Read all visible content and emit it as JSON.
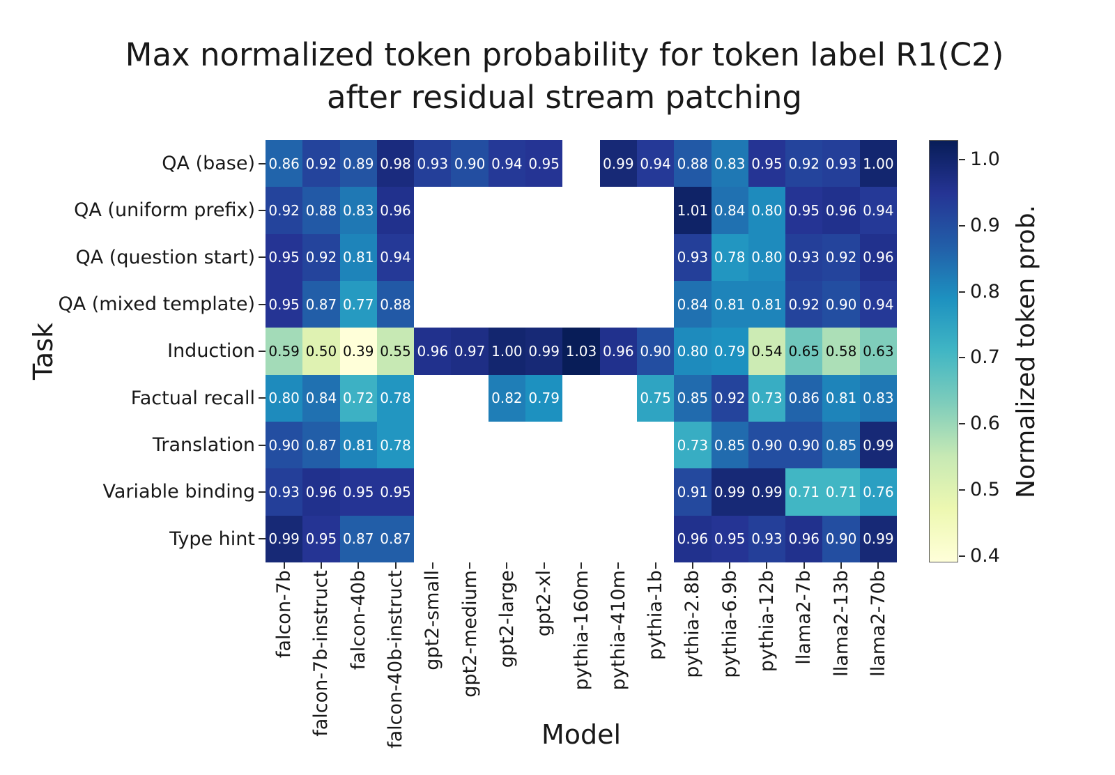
{
  "title": {
    "line1": "Max normalized token probability for token label R1(C2)",
    "line2": "after residual stream patching"
  },
  "chart_data": {
    "type": "heatmap",
    "title": "Max normalized token probability for token label R1(C2) after residual stream patching",
    "xlabel": "Model",
    "ylabel": "Task",
    "colorbar_label": "Normalized token prob.",
    "colormap": "YlGnBu",
    "vmin": 0.39,
    "vmax": 1.03,
    "colorbar_ticks": [
      0.4,
      0.5,
      0.6,
      0.7,
      0.8,
      0.9,
      1.0
    ],
    "colormap_stops": [
      [
        0.0,
        "#ffffd9"
      ],
      [
        0.125,
        "#edf8b1"
      ],
      [
        0.25,
        "#c7e9b4"
      ],
      [
        0.375,
        "#7fcdbb"
      ],
      [
        0.5,
        "#41b6c4"
      ],
      [
        0.625,
        "#1d91c0"
      ],
      [
        0.75,
        "#225ea8"
      ],
      [
        0.875,
        "#253494"
      ],
      [
        1.0,
        "#081d58"
      ]
    ],
    "columns": [
      "falcon-7b",
      "falcon-7b-instruct",
      "falcon-40b",
      "falcon-40b-instruct",
      "gpt2-small",
      "gpt2-medium",
      "gpt2-large",
      "gpt2-xl",
      "pythia-160m",
      "pythia-410m",
      "pythia-1b",
      "pythia-2.8b",
      "pythia-6.9b",
      "pythia-12b",
      "llama2-7b",
      "llama2-13b",
      "llama2-70b"
    ],
    "rows": [
      "QA (base)",
      "QA (uniform prefix)",
      "QA (question start)",
      "QA (mixed template)",
      "Induction",
      "Factual recall",
      "Translation",
      "Variable binding",
      "Type hint"
    ],
    "values": [
      [
        0.86,
        0.92,
        0.89,
        0.98,
        0.93,
        0.9,
        0.94,
        0.95,
        null,
        0.99,
        0.94,
        0.88,
        0.83,
        0.95,
        0.92,
        0.93,
        1.0
      ],
      [
        0.92,
        0.88,
        0.83,
        0.96,
        null,
        null,
        null,
        null,
        null,
        null,
        null,
        1.01,
        0.84,
        0.8,
        0.95,
        0.96,
        0.94
      ],
      [
        0.95,
        0.92,
        0.81,
        0.94,
        null,
        null,
        null,
        null,
        null,
        null,
        null,
        0.93,
        0.78,
        0.8,
        0.93,
        0.92,
        0.96
      ],
      [
        0.95,
        0.87,
        0.77,
        0.88,
        null,
        null,
        null,
        null,
        null,
        null,
        null,
        0.84,
        0.81,
        0.81,
        0.92,
        0.9,
        0.94
      ],
      [
        0.59,
        0.5,
        0.39,
        0.55,
        0.96,
        0.97,
        1.0,
        0.99,
        1.03,
        0.96,
        0.9,
        0.8,
        0.79,
        0.54,
        0.65,
        0.58,
        0.63
      ],
      [
        0.8,
        0.84,
        0.72,
        0.78,
        null,
        null,
        0.82,
        0.79,
        null,
        null,
        0.75,
        0.85,
        0.92,
        0.73,
        0.86,
        0.81,
        0.83
      ],
      [
        0.9,
        0.87,
        0.81,
        0.78,
        null,
        null,
        null,
        null,
        null,
        null,
        null,
        0.73,
        0.85,
        0.9,
        0.9,
        0.85,
        0.99
      ],
      [
        0.93,
        0.96,
        0.95,
        0.95,
        null,
        null,
        null,
        null,
        null,
        null,
        null,
        0.91,
        0.99,
        0.99,
        0.71,
        0.71,
        0.76
      ],
      [
        0.99,
        0.95,
        0.87,
        0.87,
        null,
        null,
        null,
        null,
        null,
        null,
        null,
        0.96,
        0.95,
        0.93,
        0.96,
        0.9,
        0.99
      ]
    ]
  }
}
